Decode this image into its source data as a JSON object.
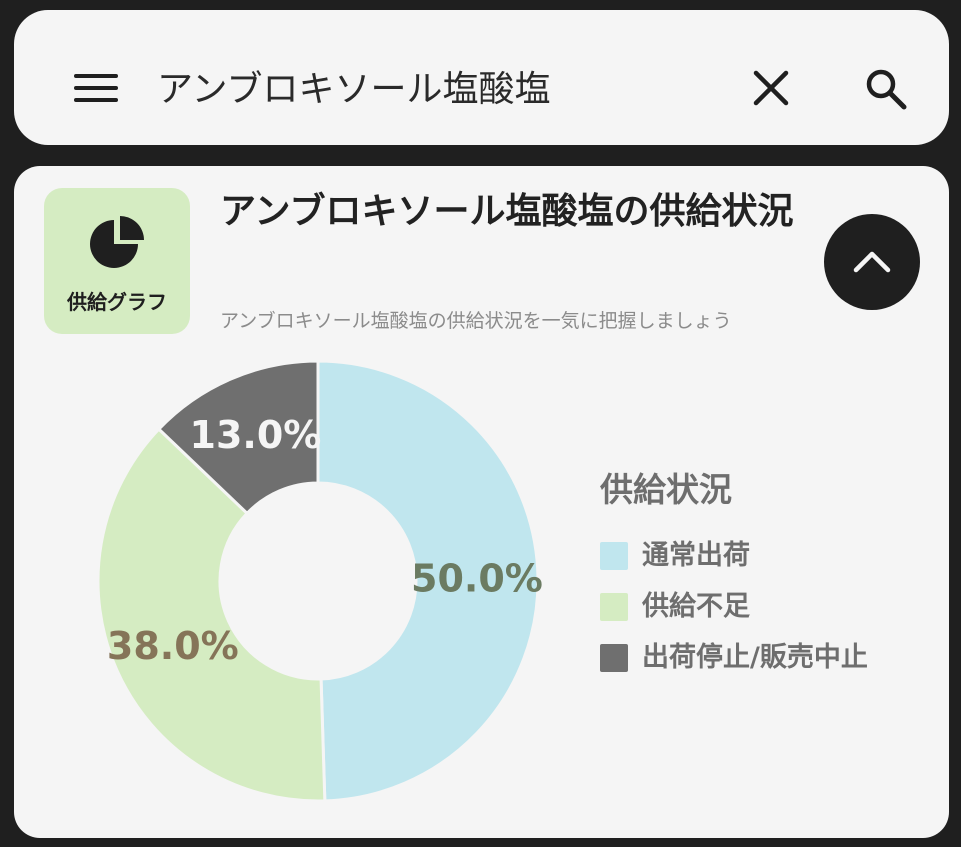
{
  "search": {
    "query": "アンブロキソール塩酸塩",
    "icons": {
      "menu": "menu-icon",
      "clear": "close-icon",
      "search": "search-icon"
    }
  },
  "card": {
    "badge_label": "供給グラフ",
    "badge_icon": "pie-chart-icon",
    "title": "アンブロキソール塩酸塩の供給状況",
    "subtitle": "アンブロキソール塩酸塩の供給状況を一気に把握しましょう",
    "collapse_icon": "chevron-up-icon"
  },
  "chart_data": {
    "type": "pie",
    "donut": true,
    "title": "",
    "legend_title": "供給状況",
    "legend_position": "right",
    "series": [
      {
        "name": "通常出荷",
        "value": 50.0,
        "label": "50.0%",
        "color": "#c0e6ee",
        "label_color": "#6b7b62"
      },
      {
        "name": "供給不足",
        "value": 38.0,
        "label": "38.0%",
        "color": "#d5ecc2",
        "label_color": "#857458"
      },
      {
        "name": "出荷停止/販売中止",
        "value": 13.0,
        "label": "13.0%",
        "color": "#6f6f6f",
        "label_color": "#f5f5f5"
      }
    ]
  },
  "colors": {
    "background": "#1f1f1f",
    "panel": "#f5f5f5",
    "badge_bg": "#d5ecc2",
    "text_dark": "#222222",
    "text_muted": "#8b8b8b"
  }
}
